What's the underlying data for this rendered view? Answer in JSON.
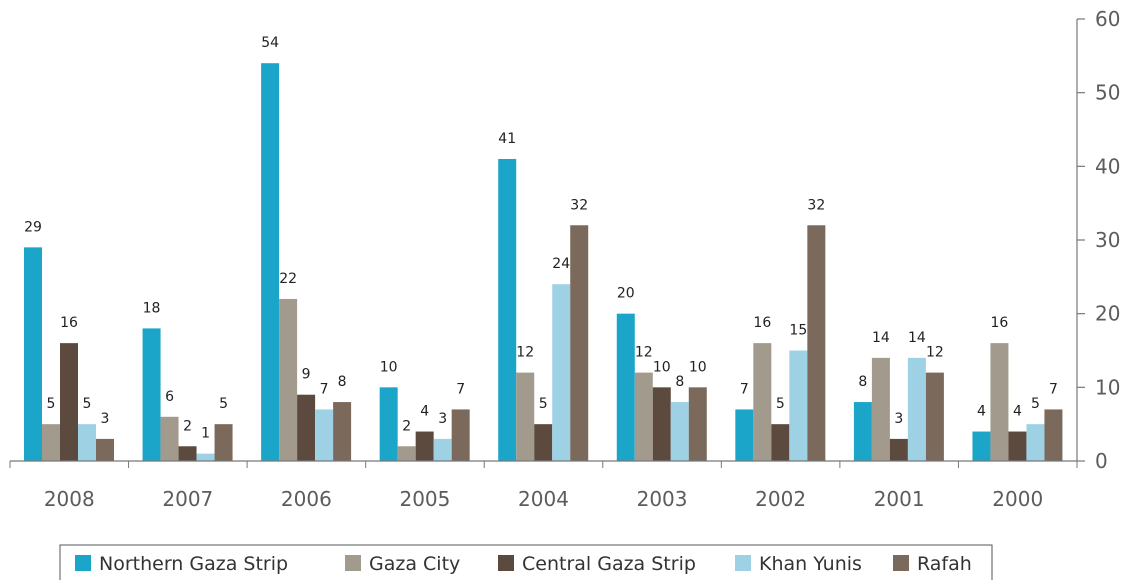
{
  "chart_data": {
    "type": "bar",
    "categories": [
      "2008",
      "2007",
      "2006",
      "2005",
      "2004",
      "2003",
      "2002",
      "2001",
      "2000"
    ],
    "series": [
      {
        "name": "Northern Gaza Strip",
        "color": "#1ba5c8",
        "values": [
          29,
          18,
          54,
          10,
          41,
          20,
          7,
          8,
          4
        ]
      },
      {
        "name": "Gaza City",
        "color": "#a39a8e",
        "values": [
          5,
          6,
          22,
          2,
          12,
          12,
          16,
          14,
          16
        ]
      },
      {
        "name": "Central Gaza Strip",
        "color": "#5c4a3e",
        "values": [
          16,
          2,
          9,
          4,
          5,
          10,
          5,
          3,
          4
        ]
      },
      {
        "name": "Khan Yunis",
        "color": "#9fd1e5",
        "values": [
          5,
          1,
          7,
          3,
          24,
          8,
          15,
          14,
          5
        ]
      },
      {
        "name": "Rafah",
        "color": "#7b6a5c",
        "values": [
          3,
          5,
          8,
          7,
          32,
          10,
          32,
          12,
          7
        ]
      }
    ],
    "ylim": [
      0,
      60
    ],
    "y_ticks": [
      0,
      10,
      20,
      30,
      40,
      50,
      60
    ],
    "y_axis_side": "right",
    "grid": false,
    "legend_position": "bottom",
    "xlabel": "",
    "ylabel": "",
    "title": ""
  }
}
